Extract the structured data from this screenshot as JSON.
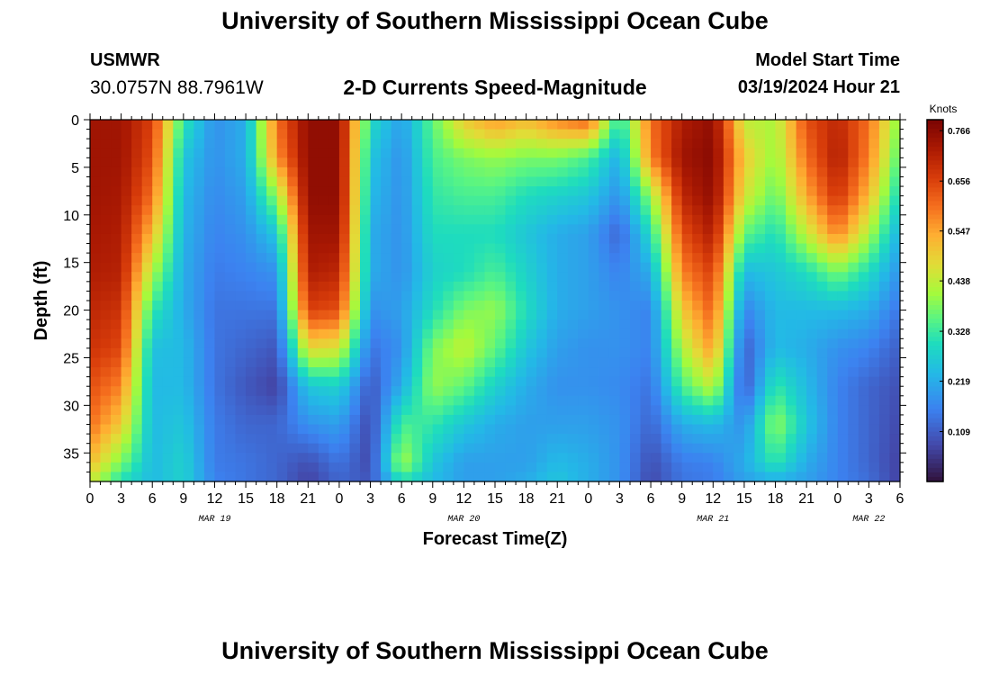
{
  "page": {
    "title": "University of Southern Mississippi Ocean Cube",
    "station": "USMWR",
    "coordinates": "30.0757N  88.7961W",
    "subtitle": "2-D Currents Speed-Magnitude",
    "model_start_label": "Model Start Time",
    "model_start_value": "03/19/2024 Hour 21",
    "footer_title": "University of Southern Mississippi Ocean Cube"
  },
  "chart_data": {
    "type": "heatmap",
    "title": "2-D Currents Speed-Magnitude",
    "xlabel": "Forecast Time(Z)",
    "ylabel": "Depth (ft)",
    "colorbar_label": "Knots",
    "colorbar_ticks": [
      0.109,
      0.219,
      0.328,
      0.438,
      0.547,
      0.656,
      0.766
    ],
    "colorbar_range": [
      0.0,
      0.79
    ],
    "x_unit": "hours since MAR 19 00Z",
    "xlim": [
      0,
      78
    ],
    "x_ticks": [
      0,
      3,
      6,
      9,
      12,
      15,
      18,
      21,
      24,
      27,
      30,
      33,
      36,
      39,
      42,
      45,
      48,
      51,
      54,
      57,
      60,
      63,
      66,
      69,
      72,
      75,
      78
    ],
    "x_tick_labels": [
      "0",
      "3",
      "6",
      "9",
      "12",
      "15",
      "18",
      "21",
      "0",
      "3",
      "6",
      "9",
      "12",
      "15",
      "18",
      "21",
      "0",
      "3",
      "6",
      "9",
      "12",
      "15",
      "18",
      "21",
      "0",
      "3",
      "6"
    ],
    "date_labels": [
      {
        "x": 12,
        "label": "MAR 19"
      },
      {
        "x": 36,
        "label": "MAR 20"
      },
      {
        "x": 60,
        "label": "MAR 21"
      },
      {
        "x": 75,
        "label": "MAR 22"
      }
    ],
    "ylim": [
      0,
      38
    ],
    "y_ticks": [
      0,
      5,
      10,
      15,
      20,
      25,
      30,
      35
    ],
    "y_reversed": true,
    "x": [
      0,
      3,
      6,
      9,
      12,
      15,
      18,
      21,
      24,
      27,
      30,
      33,
      36,
      39,
      42,
      45,
      48,
      51,
      54,
      57,
      60,
      63,
      66,
      69,
      72,
      75,
      78
    ],
    "depths": [
      0,
      4,
      8,
      12,
      16,
      20,
      24,
      28,
      32,
      36,
      38
    ],
    "values": [
      [
        0.74,
        0.74,
        0.74,
        0.73,
        0.72,
        0.7,
        0.68,
        0.64,
        0.6,
        0.52,
        0.45
      ],
      [
        0.74,
        0.74,
        0.73,
        0.72,
        0.71,
        0.68,
        0.65,
        0.58,
        0.5,
        0.38,
        0.3
      ],
      [
        0.66,
        0.64,
        0.6,
        0.52,
        0.42,
        0.32,
        0.25,
        0.24,
        0.24,
        0.24,
        0.24
      ],
      [
        0.32,
        0.26,
        0.24,
        0.23,
        0.22,
        0.22,
        0.24,
        0.24,
        0.26,
        0.28,
        0.28
      ],
      [
        0.18,
        0.18,
        0.17,
        0.16,
        0.15,
        0.14,
        0.14,
        0.14,
        0.15,
        0.15,
        0.16
      ],
      [
        0.22,
        0.22,
        0.2,
        0.18,
        0.16,
        0.14,
        0.12,
        0.1,
        0.12,
        0.14,
        0.14
      ],
      [
        0.6,
        0.56,
        0.4,
        0.26,
        0.18,
        0.14,
        0.1,
        0.07,
        0.12,
        0.12,
        0.12
      ],
      [
        0.76,
        0.76,
        0.76,
        0.74,
        0.72,
        0.66,
        0.48,
        0.26,
        0.18,
        0.09,
        0.07
      ],
      [
        0.76,
        0.76,
        0.76,
        0.74,
        0.7,
        0.64,
        0.46,
        0.28,
        0.2,
        0.14,
        0.12
      ],
      [
        0.3,
        0.26,
        0.24,
        0.22,
        0.22,
        0.18,
        0.14,
        0.1,
        0.08,
        0.08,
        0.1
      ],
      [
        0.2,
        0.18,
        0.18,
        0.18,
        0.18,
        0.2,
        0.18,
        0.22,
        0.34,
        0.42,
        0.3
      ],
      [
        0.36,
        0.34,
        0.32,
        0.3,
        0.28,
        0.3,
        0.38,
        0.4,
        0.32,
        0.26,
        0.24
      ],
      [
        0.5,
        0.38,
        0.34,
        0.3,
        0.3,
        0.38,
        0.44,
        0.36,
        0.26,
        0.2,
        0.2
      ],
      [
        0.56,
        0.4,
        0.34,
        0.3,
        0.34,
        0.4,
        0.36,
        0.28,
        0.22,
        0.2,
        0.2
      ],
      [
        0.52,
        0.38,
        0.3,
        0.26,
        0.28,
        0.3,
        0.26,
        0.22,
        0.2,
        0.2,
        0.22
      ],
      [
        0.58,
        0.38,
        0.28,
        0.22,
        0.22,
        0.22,
        0.2,
        0.18,
        0.2,
        0.24,
        0.26
      ],
      [
        0.62,
        0.34,
        0.26,
        0.2,
        0.2,
        0.2,
        0.18,
        0.18,
        0.2,
        0.22,
        0.22
      ],
      [
        0.3,
        0.22,
        0.18,
        0.12,
        0.16,
        0.18,
        0.18,
        0.17,
        0.18,
        0.18,
        0.18
      ],
      [
        0.6,
        0.58,
        0.4,
        0.3,
        0.22,
        0.16,
        0.16,
        0.14,
        0.12,
        0.09,
        0.08
      ],
      [
        0.72,
        0.74,
        0.7,
        0.64,
        0.58,
        0.5,
        0.42,
        0.34,
        0.22,
        0.15,
        0.14
      ],
      [
        0.76,
        0.77,
        0.76,
        0.72,
        0.66,
        0.62,
        0.56,
        0.44,
        0.24,
        0.16,
        0.15
      ],
      [
        0.44,
        0.5,
        0.46,
        0.36,
        0.24,
        0.16,
        0.11,
        0.1,
        0.18,
        0.22,
        0.2
      ],
      [
        0.42,
        0.4,
        0.36,
        0.3,
        0.26,
        0.24,
        0.24,
        0.32,
        0.4,
        0.32,
        0.22
      ],
      [
        0.64,
        0.6,
        0.54,
        0.44,
        0.3,
        0.24,
        0.22,
        0.24,
        0.26,
        0.22,
        0.2
      ],
      [
        0.7,
        0.72,
        0.68,
        0.58,
        0.38,
        0.24,
        0.18,
        0.16,
        0.16,
        0.16,
        0.16
      ],
      [
        0.6,
        0.58,
        0.52,
        0.42,
        0.3,
        0.22,
        0.16,
        0.12,
        0.12,
        0.12,
        0.13
      ],
      [
        0.38,
        0.34,
        0.28,
        0.22,
        0.18,
        0.14,
        0.11,
        0.09,
        0.08,
        0.07,
        0.07
      ]
    ]
  }
}
